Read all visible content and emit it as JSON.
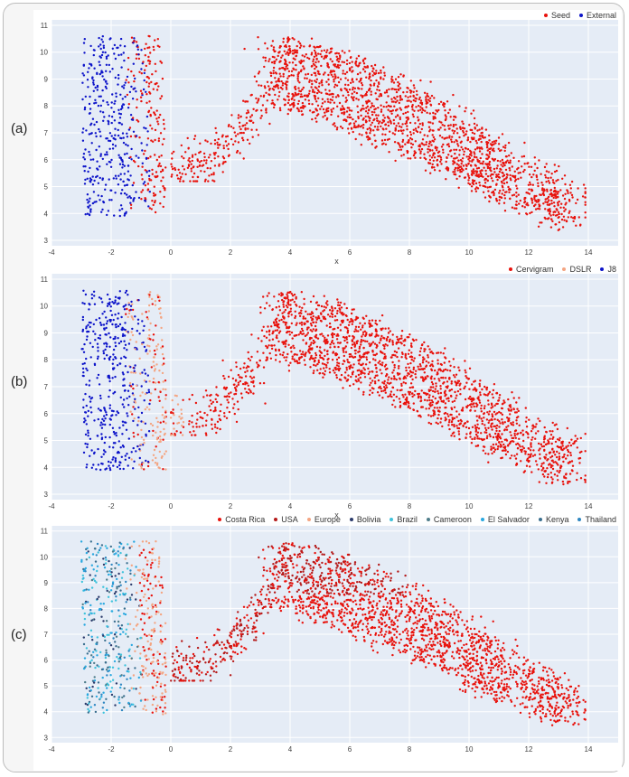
{
  "chart_data": [
    {
      "type": "scatter",
      "panel_label": "(a)",
      "title": "",
      "xlabel": "x",
      "ylabel": "",
      "xlim": [
        -4,
        15
      ],
      "ylim": [
        2.8,
        11.2
      ],
      "xticks": [
        -4,
        -2,
        0,
        2,
        4,
        6,
        8,
        10,
        12,
        14
      ],
      "yticks": [
        3,
        4,
        5,
        6,
        7,
        8,
        9,
        10,
        11
      ],
      "grid": true,
      "legend_position": "top-right",
      "series": [
        {
          "name": "Seed",
          "color": "#e8120c"
        },
        {
          "name": "External",
          "color": "#0d14c9"
        }
      ]
    },
    {
      "type": "scatter",
      "panel_label": "(b)",
      "title": "",
      "xlabel": "x",
      "ylabel": "",
      "xlim": [
        -4,
        15
      ],
      "ylim": [
        2.8,
        11.2
      ],
      "xticks": [
        -4,
        -2,
        0,
        2,
        4,
        6,
        8,
        10,
        12,
        14
      ],
      "yticks": [
        3,
        4,
        5,
        6,
        7,
        8,
        9,
        10,
        11
      ],
      "grid": true,
      "legend_position": "top-right",
      "series": [
        {
          "name": "Cervigram",
          "color": "#e8120c"
        },
        {
          "name": "DSLR",
          "color": "#f4a582"
        },
        {
          "name": "J8",
          "color": "#0d14c9"
        }
      ]
    },
    {
      "type": "scatter",
      "panel_label": "(c)",
      "title": "",
      "xlabel": "",
      "ylabel": "",
      "xlim": [
        -4,
        15
      ],
      "ylim": [
        2.8,
        11.2
      ],
      "xticks": [
        -4,
        -2,
        0,
        2,
        4,
        6,
        8,
        10,
        12,
        14
      ],
      "yticks": [
        3,
        4,
        5,
        6,
        7,
        8,
        9,
        10,
        11
      ],
      "grid": true,
      "legend_position": "top-right",
      "series": [
        {
          "name": "Costa Rica",
          "color": "#e8120c"
        },
        {
          "name": "USA",
          "color": "#b51b1b"
        },
        {
          "name": "Europe",
          "color": "#f4a582"
        },
        {
          "name": "Bolivia",
          "color": "#2b3a6b"
        },
        {
          "name": "Brazil",
          "color": "#3ec3dc"
        },
        {
          "name": "Cameroon",
          "color": "#4f7d8a"
        },
        {
          "name": "El Salvador",
          "color": "#29a8e0"
        },
        {
          "name": "Kenya",
          "color": "#3b6f8f"
        },
        {
          "name": "Thailand",
          "color": "#2e86c1"
        }
      ]
    }
  ]
}
